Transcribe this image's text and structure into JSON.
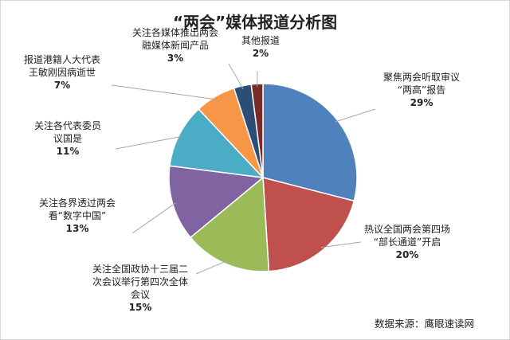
{
  "chart_data": {
    "type": "pie",
    "title": "“两会”媒体报道分析图",
    "slices": [
      {
        "lines": [
          "聚焦两会听取审议",
          "“两高”报告"
        ],
        "value": 29,
        "pct": "29%",
        "color": "#4f81bd"
      },
      {
        "lines": [
          "热议全国两会第四场",
          "“部长通道”开启"
        ],
        "value": 20,
        "pct": "20%",
        "color": "#c0504d"
      },
      {
        "lines": [
          "关注全国政协十三届二",
          "次会议举行第四次全体",
          "会议"
        ],
        "value": 15,
        "pct": "15%",
        "color": "#9bbb59"
      },
      {
        "lines": [
          "关注各界透过两会",
          "看“数字中国”"
        ],
        "value": 13,
        "pct": "13%",
        "color": "#8064a2"
      },
      {
        "lines": [
          "关注各代表委员",
          "议国是"
        ],
        "value": 11,
        "pct": "11%",
        "color": "#4bacc6"
      },
      {
        "lines": [
          "报道港籍人大代表",
          "王敏刚因病逝世"
        ],
        "value": 7,
        "pct": "7%",
        "color": "#f79646"
      },
      {
        "lines": [
          "关注各媒体推出两会",
          "融媒体新闻产品"
        ],
        "value": 3,
        "pct": "3%",
        "color": "#2c4d75"
      },
      {
        "lines": [
          "其他报道"
        ],
        "value": 2,
        "pct": "2%",
        "color": "#772c2a"
      }
    ],
    "source": "数据来源：鹰眼速读网"
  }
}
